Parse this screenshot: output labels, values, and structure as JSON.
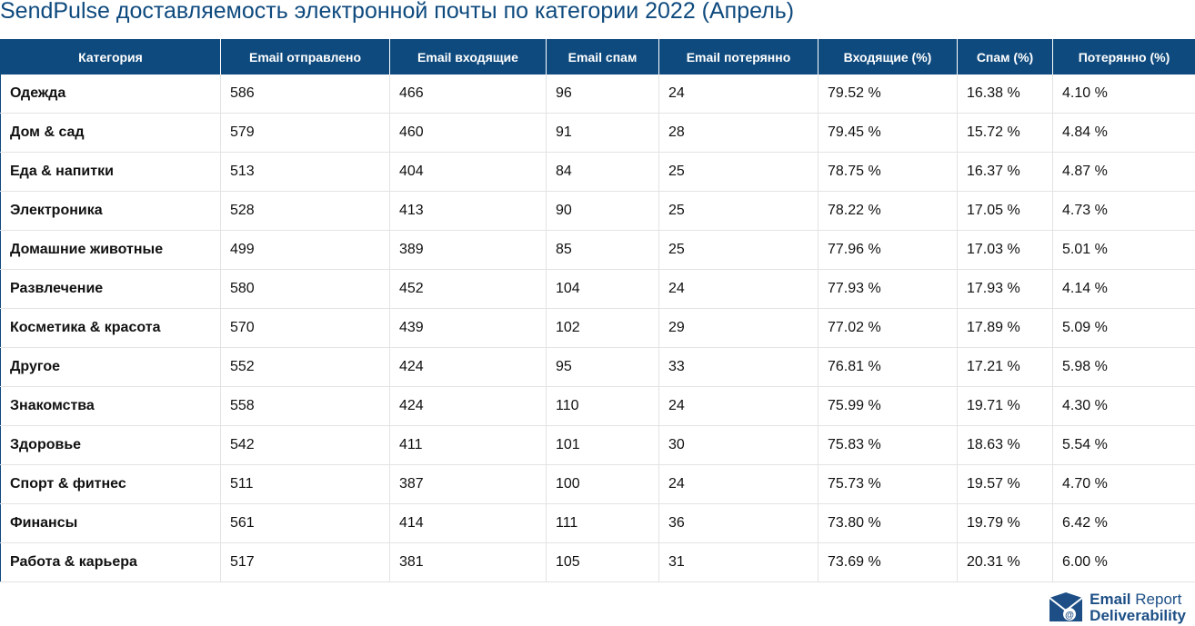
{
  "header": {
    "title": "SendPulse доставляемость электронной почты по категории 2022 (Апрель)"
  },
  "table": {
    "columns": [
      "Категория",
      "Email отправлено",
      "Email входящие",
      "Email спам",
      "Email потерянно",
      "Входящие (%)",
      "Спам (%)",
      "Потерянно (%)"
    ],
    "rows": [
      [
        "Одежда",
        "586",
        "466",
        "96",
        "24",
        "79.52 %",
        "16.38 %",
        "4.10 %"
      ],
      [
        "Дом & сад",
        "579",
        "460",
        "91",
        "28",
        "79.45 %",
        "15.72 %",
        "4.84 %"
      ],
      [
        "Еда & напитки",
        "513",
        "404",
        "84",
        "25",
        "78.75 %",
        "16.37 %",
        "4.87 %"
      ],
      [
        "Электроника",
        "528",
        "413",
        "90",
        "25",
        "78.22 %",
        "17.05 %",
        "4.73 %"
      ],
      [
        "Домашние животные",
        "499",
        "389",
        "85",
        "25",
        "77.96 %",
        "17.03 %",
        "5.01 %"
      ],
      [
        "Развлечение",
        "580",
        "452",
        "104",
        "24",
        "77.93 %",
        "17.93 %",
        "4.14 %"
      ],
      [
        "Косметика & красота",
        "570",
        "439",
        "102",
        "29",
        "77.02 %",
        "17.89 %",
        "5.09 %"
      ],
      [
        "Другое",
        "552",
        "424",
        "95",
        "33",
        "76.81 %",
        "17.21 %",
        "5.98 %"
      ],
      [
        "Знакомства",
        "558",
        "424",
        "110",
        "24",
        "75.99 %",
        "19.71 %",
        "4.30 %"
      ],
      [
        "Здоровье",
        "542",
        "411",
        "101",
        "30",
        "75.83 %",
        "18.63 %",
        "5.54 %"
      ],
      [
        "Спорт & фитнес",
        "511",
        "387",
        "100",
        "24",
        "75.73 %",
        "19.57 %",
        "4.70 %"
      ],
      [
        "Финансы",
        "561",
        "414",
        "111",
        "36",
        "73.80 %",
        "19.79 %",
        "6.42 %"
      ],
      [
        "Работа & карьера",
        "517",
        "381",
        "105",
        "31",
        "73.69 %",
        "20.31 %",
        "6.00 %"
      ]
    ]
  },
  "logo": {
    "word1": "Email",
    "word2": "Report",
    "line2": "Deliverability"
  }
}
